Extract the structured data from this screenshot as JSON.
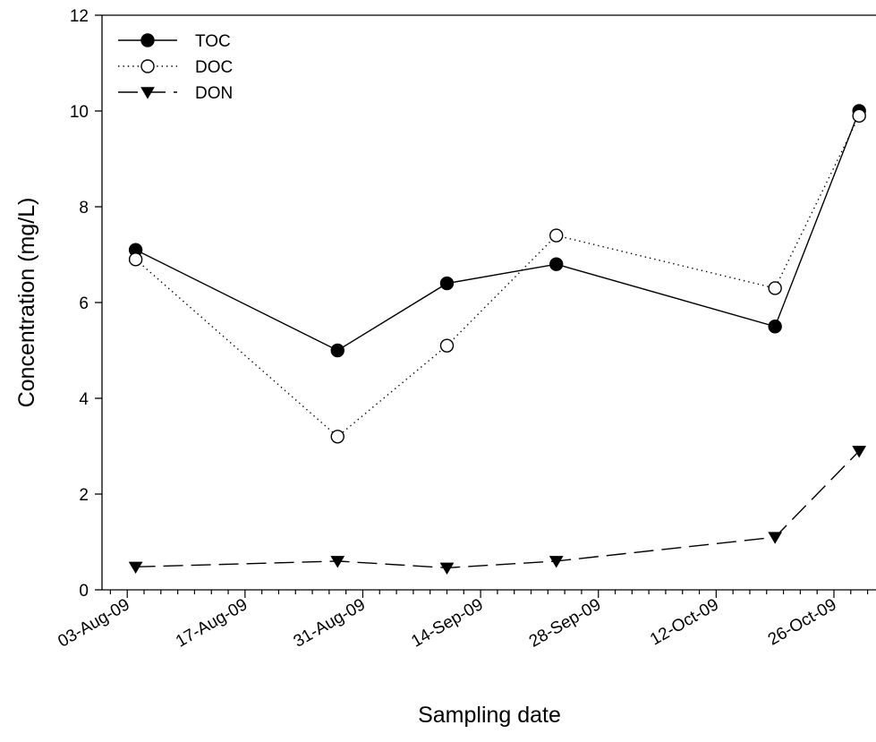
{
  "chart_data": {
    "type": "line",
    "title": "",
    "xlabel": "Sampling date",
    "ylabel": "Concentration (mg/L)",
    "x": [
      "2009-08-04",
      "2009-08-28",
      "2009-09-10",
      "2009-09-23",
      "2009-10-19",
      "2009-10-29"
    ],
    "xlim": [
      "2009-07-31",
      "2009-10-31"
    ],
    "ylim": [
      0,
      12
    ],
    "yticks": [
      0,
      2,
      4,
      6,
      8,
      10,
      12
    ],
    "xtick_dates": [
      "2009-08-03",
      "2009-08-17",
      "2009-08-31",
      "2009-09-14",
      "2009-09-28",
      "2009-10-12",
      "2009-10-26"
    ],
    "xtick_labels": [
      "03-Aug-09",
      "17-Aug-09",
      "31-Aug-09",
      "14-Sep-09",
      "28-Sep-09",
      "12-Oct-09",
      "26-Oct-09"
    ],
    "grid": false,
    "legend": "top-left",
    "series": [
      {
        "name": "TOC",
        "values": [
          7.1,
          5.0,
          6.4,
          6.8,
          5.5,
          10.0
        ],
        "line": "solid",
        "marker": "filled-circle",
        "color": "#000000"
      },
      {
        "name": "DOC",
        "values": [
          6.9,
          3.2,
          5.1,
          7.4,
          6.3,
          9.9
        ],
        "line": "dotted",
        "marker": "open-circle",
        "color": "#000000"
      },
      {
        "name": "DON",
        "values": [
          0.48,
          0.6,
          0.46,
          0.6,
          1.1,
          2.9
        ],
        "line": "dashed",
        "marker": "filled-triangle-down",
        "color": "#000000"
      }
    ]
  }
}
